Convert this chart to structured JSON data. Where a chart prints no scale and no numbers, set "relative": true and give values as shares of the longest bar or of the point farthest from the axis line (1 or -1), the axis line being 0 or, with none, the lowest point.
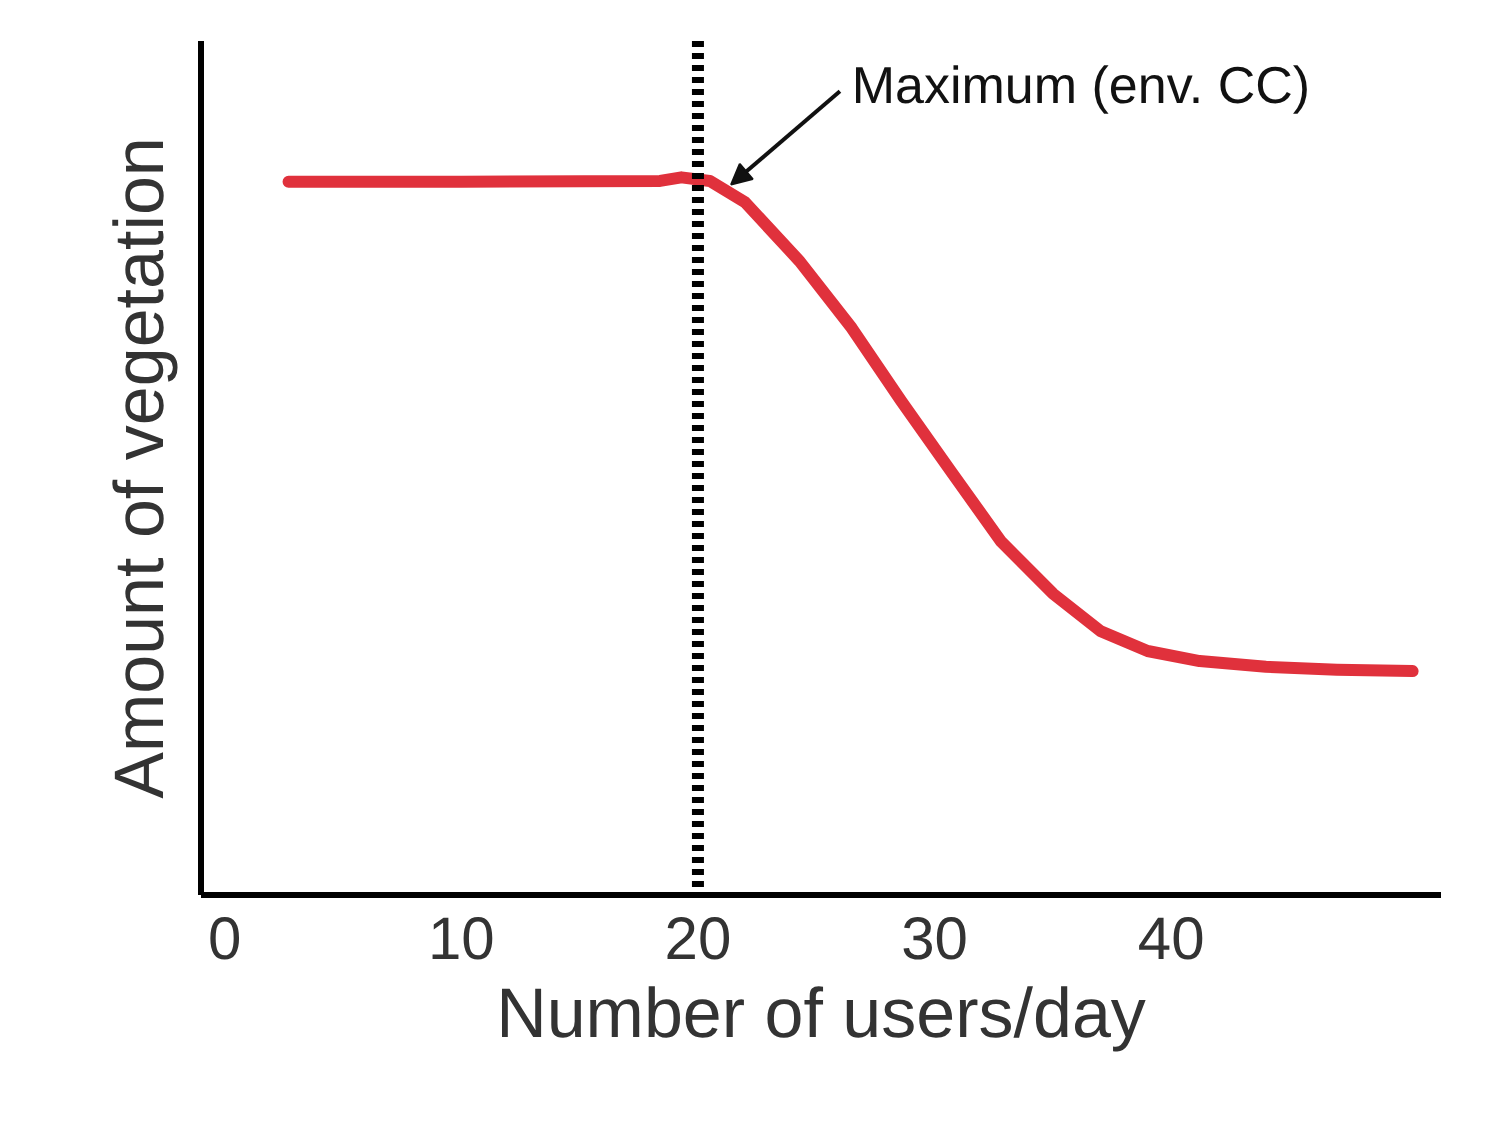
{
  "chart_data": {
    "type": "line",
    "xlabel": "Number of users/day",
    "ylabel": "Amount of vegetation",
    "relative": true,
    "xlim": [
      -1,
      51.4
    ],
    "xticks": [
      0,
      10,
      20,
      30,
      40
    ],
    "grid": false,
    "marker": "none",
    "line_style": "solid",
    "series": [
      {
        "color": "#e0313c",
        "x": [
          2.7,
          10,
          18.4,
          19.3,
          20.5,
          22,
          24.3,
          26.5,
          28.6,
          30.7,
          32.8,
          35,
          37,
          39,
          41.2,
          44,
          47,
          50.2
        ],
        "values": [
          0.994,
          0.994,
          0.995,
          1.0,
          0.995,
          0.965,
          0.883,
          0.79,
          0.688,
          0.59,
          0.493,
          0.42,
          0.368,
          0.34,
          0.326,
          0.318,
          0.314,
          0.312
        ]
      }
    ],
    "ref_lines": [
      {
        "axis": "x",
        "value": 20,
        "label": "Maximum (env. CC)",
        "color": "#000000",
        "line_style": "dotted"
      }
    ]
  }
}
